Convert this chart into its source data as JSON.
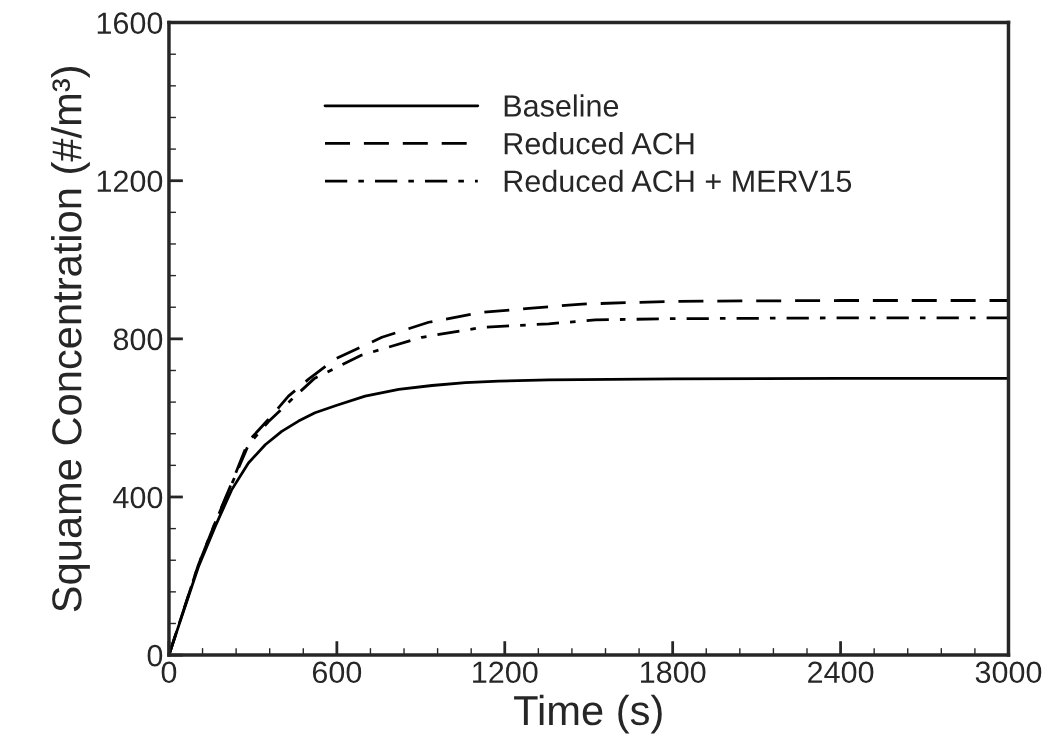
{
  "chart_data": {
    "type": "line",
    "xlabel": "Time (s)",
    "ylabel": "Squame Concentration (#/m³)",
    "xlim": [
      0,
      3000
    ],
    "ylim": [
      0,
      1600
    ],
    "xticks": [
      0,
      {
        "value": 120,
        "label": null
      },
      {
        "value": 240,
        "label": null
      },
      {
        "value": 360,
        "label": null
      },
      {
        "value": 480,
        "label": null
      },
      600,
      {
        "value": 720,
        "label": null
      },
      {
        "value": 840,
        "label": null
      },
      {
        "value": 960,
        "label": null
      },
      {
        "value": 1080,
        "label": null
      },
      1200,
      {
        "value": 1320,
        "label": null
      },
      {
        "value": 1440,
        "label": null
      },
      {
        "value": 1560,
        "label": null
      },
      {
        "value": 1680,
        "label": null
      },
      1800,
      {
        "value": 1920,
        "label": null
      },
      {
        "value": 2040,
        "label": null
      },
      {
        "value": 2160,
        "label": null
      },
      {
        "value": 2280,
        "label": null
      },
      2400,
      {
        "value": 2520,
        "label": null
      },
      {
        "value": 2640,
        "label": null
      },
      {
        "value": 2760,
        "label": null
      },
      {
        "value": 2880,
        "label": null
      },
      3000
    ],
    "yticks": [
      0,
      {
        "value": 80,
        "label": null
      },
      {
        "value": 160,
        "label": null
      },
      {
        "value": 240,
        "label": null
      },
      {
        "value": 320,
        "label": null
      },
      400,
      {
        "value": 480,
        "label": null
      },
      {
        "value": 560,
        "label": null
      },
      {
        "value": 640,
        "label": null
      },
      {
        "value": 720,
        "label": null
      },
      800,
      {
        "value": 880,
        "label": null
      },
      {
        "value": 960,
        "label": null
      },
      {
        "value": 1040,
        "label": null
      },
      {
        "value": 1120,
        "label": null
      },
      1200,
      {
        "value": 1280,
        "label": null
      },
      {
        "value": 1360,
        "label": null
      },
      {
        "value": 1440,
        "label": null
      },
      {
        "value": 1520,
        "label": null
      },
      1600
    ],
    "grid": false,
    "legend": "top",
    "marker": "none",
    "series": [
      {
        "name": "Baseline",
        "color": "#000000",
        "line_style": "solid",
        "x": [
          0,
          45,
          105,
          165,
          224,
          284,
          344,
          403,
          463,
          522,
          600,
          701,
          821,
          940,
          1059,
          1178,
          1357,
          1800,
          2400,
          3000
        ],
        "values": [
          0,
          96,
          223,
          325,
          418,
          486,
          532,
          566,
          592,
          613,
          632,
          655,
          672,
          682,
          689,
          693,
          696,
          699,
          700,
          700
        ]
      },
      {
        "name": "Reduced ACH",
        "color": "#000000",
        "line_style": "dashed",
        "x": [
          0,
          45,
          105,
          165,
          224,
          284,
          355,
          427,
          499,
          594,
          761,
          928,
          1119,
          1286,
          1477,
          1800,
          2400,
          3000
        ],
        "values": [
          0,
          98,
          228,
          335,
          435,
          541,
          596,
          655,
          698,
          749,
          804,
          842,
          867,
          877,
          888,
          895,
          897,
          897
        ]
      },
      {
        "name": "Reduced ACH + MERV15",
        "color": "#000000",
        "line_style": "dashdot",
        "x": [
          0,
          45,
          105,
          165,
          224,
          284,
          355,
          439,
          520,
          689,
          904,
          1119,
          1357,
          1524,
          1800,
          2400,
          3000
        ],
        "values": [
          0,
          98,
          228,
          335,
          432,
          532,
          590,
          647,
          700,
          759,
          804,
          829,
          838,
          848,
          851,
          853,
          853
        ]
      }
    ]
  }
}
